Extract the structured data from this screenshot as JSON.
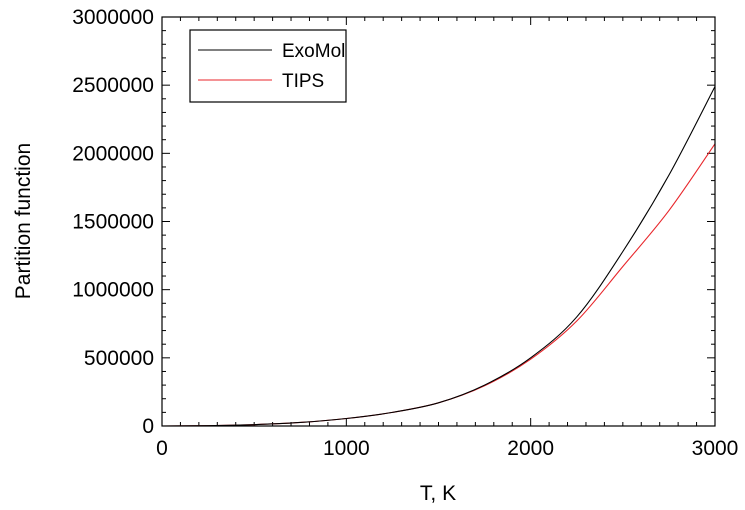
{
  "chart_data": {
    "type": "line",
    "xlabel": "T, K",
    "ylabel": "Partition function",
    "xlim": [
      0,
      3000
    ],
    "ylim": [
      0,
      3000000
    ],
    "xticks": [
      0,
      1000,
      2000,
      3000
    ],
    "xtick_labels": [
      "0",
      "1000",
      "2000",
      "3000"
    ],
    "yticks": [
      0,
      500000,
      1000000,
      1500000,
      2000000,
      2500000,
      3000000
    ],
    "ytick_labels": [
      "0",
      "500000",
      "1000000",
      "1500000",
      "2000000",
      "2500000",
      "3000000"
    ],
    "grid": false,
    "legend_position": "top-left",
    "series": [
      {
        "name": "ExoMol",
        "color": "#000000",
        "x": [
          0,
          250,
          500,
          750,
          1000,
          1250,
          1500,
          1750,
          2000,
          2250,
          2500,
          2750,
          3000
        ],
        "y": [
          0,
          2500,
          10000,
          26000,
          55000,
          100000,
          170000,
          300000,
          500000,
          800000,
          1280000,
          1840000,
          2490000
        ]
      },
      {
        "name": "TIPS",
        "color": "#e8262b",
        "x": [
          0,
          250,
          500,
          750,
          1000,
          1250,
          1500,
          1750,
          2000,
          2250,
          2500,
          2750,
          3000
        ],
        "y": [
          0,
          2500,
          10000,
          26000,
          55000,
          100000,
          170000,
          295000,
          490000,
          770000,
          1170000,
          1580000,
          2070000
        ]
      }
    ]
  }
}
